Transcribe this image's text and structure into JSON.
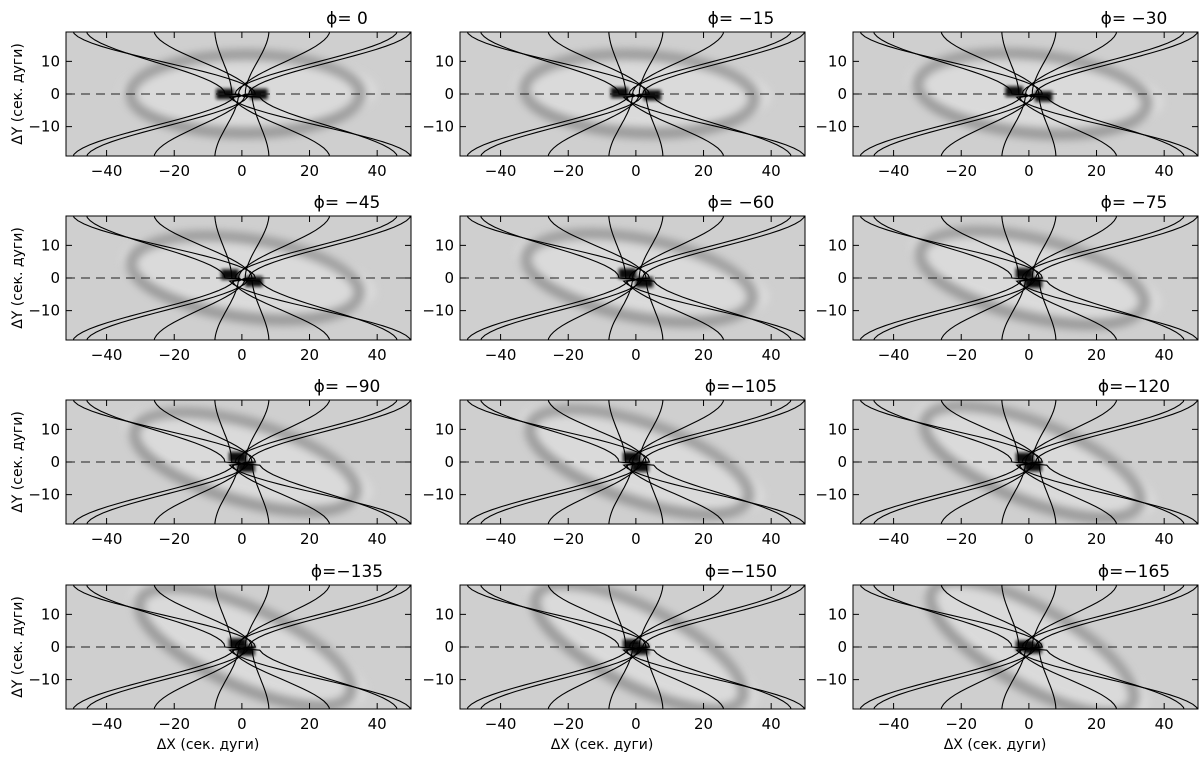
{
  "figure": {
    "x_axis_label": "ΔX (сек. дуги)",
    "y_axis_label": "ΔY (сек. дуги)",
    "phi_symbol": "ϕ"
  },
  "chart_data": {
    "type": "heatmap",
    "layout": {
      "rows": 4,
      "columns": 3
    },
    "xlabel": "ΔX (сек. дуги)",
    "ylabel": "ΔY (сек. дуги)",
    "xlim": [
      -52,
      50
    ],
    "ylim": [
      -19,
      19
    ],
    "x_ticks": [
      -40,
      -20,
      0,
      20,
      40
    ],
    "y_ticks": [
      10,
      0,
      -10
    ],
    "x_tick_labels": [
      "−40",
      "−20",
      "0",
      "20",
      "40"
    ],
    "y_tick_labels": [
      "10",
      "0",
      "−10"
    ],
    "reference_line": {
      "y": 0,
      "style": "dashed"
    },
    "colormap": "grayscale",
    "panels": [
      {
        "phi": 0,
        "title": "ϕ=    0"
      },
      {
        "phi": -15,
        "title": "ϕ=  −15"
      },
      {
        "phi": -30,
        "title": "ϕ=  −30"
      },
      {
        "phi": -45,
        "title": "ϕ=  −45"
      },
      {
        "phi": -60,
        "title": "ϕ=  −60"
      },
      {
        "phi": -75,
        "title": "ϕ=  −75"
      },
      {
        "phi": -90,
        "title": "ϕ=  −90"
      },
      {
        "phi": -105,
        "title": "ϕ=−105"
      },
      {
        "phi": -120,
        "title": "ϕ=−120"
      },
      {
        "phi": -135,
        "title": "ϕ=−135"
      },
      {
        "phi": -150,
        "title": "ϕ=−150"
      },
      {
        "phi": -165,
        "title": "ϕ=−165"
      }
    ]
  }
}
